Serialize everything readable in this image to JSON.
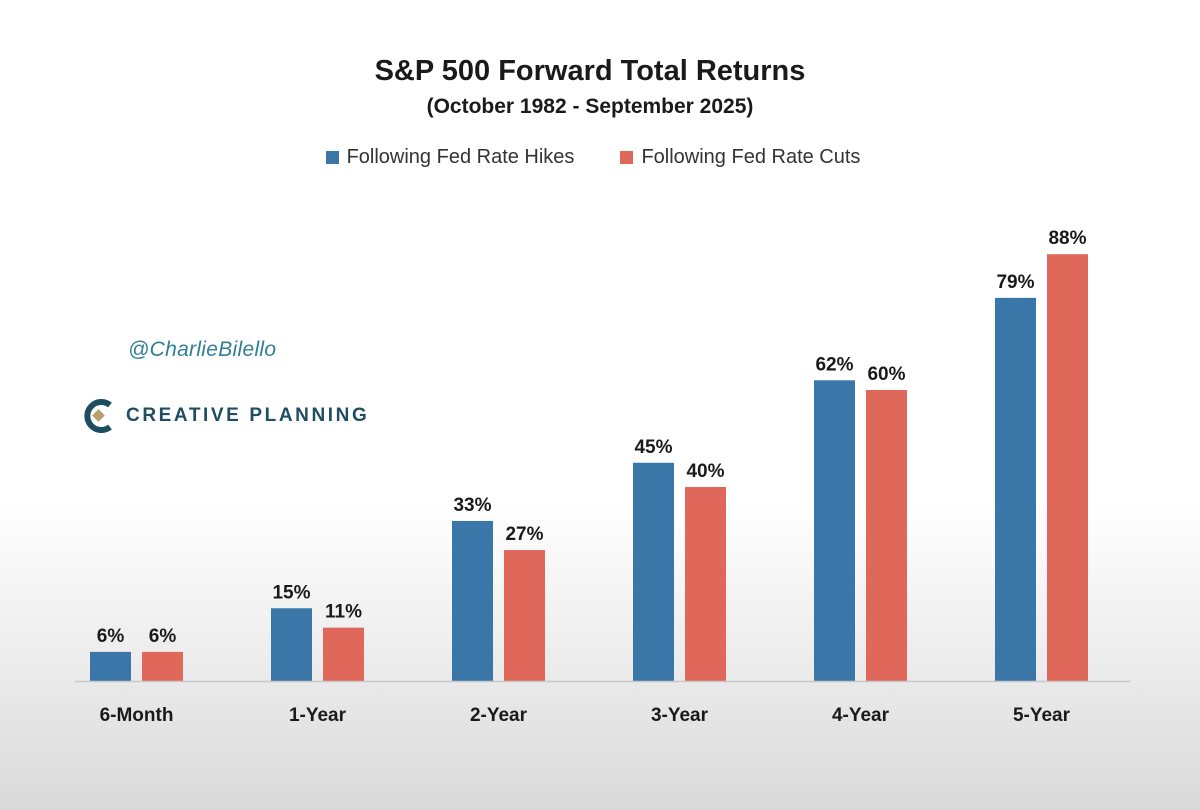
{
  "watermark": {
    "handle": "@CharlieBilello",
    "brand": "CREATIVE PLANNING",
    "brand_colors": {
      "dark": "#1f4e63",
      "gold": "#b9a06a",
      "text": "#2f7f97"
    }
  },
  "colors": {
    "hikes": "#3a76a8",
    "cuts": "#e0685a",
    "axis": "#c8c8c8"
  },
  "chart_data": {
    "type": "bar",
    "title": "S&P 500 Forward Total Returns",
    "subtitle": "(October 1982 - September 2025)",
    "categories": [
      "6-Month",
      "1-Year",
      "2-Year",
      "3-Year",
      "4-Year",
      "5-Year"
    ],
    "series": [
      {
        "name": "Following Fed Rate Hikes",
        "values": [
          6,
          15,
          33,
          45,
          62,
          79
        ],
        "labels": [
          "6%",
          "15%",
          "33%",
          "45%",
          "62%",
          "79%"
        ]
      },
      {
        "name": "Following Fed Rate Cuts",
        "values": [
          6,
          11,
          27,
          40,
          60,
          88
        ],
        "labels": [
          "6%",
          "11%",
          "27%",
          "40%",
          "60%",
          "88%"
        ]
      }
    ],
    "ylim": [
      0,
      100
    ],
    "grid": false,
    "legend_position": "top-center",
    "xlabel": "",
    "ylabel": ""
  }
}
